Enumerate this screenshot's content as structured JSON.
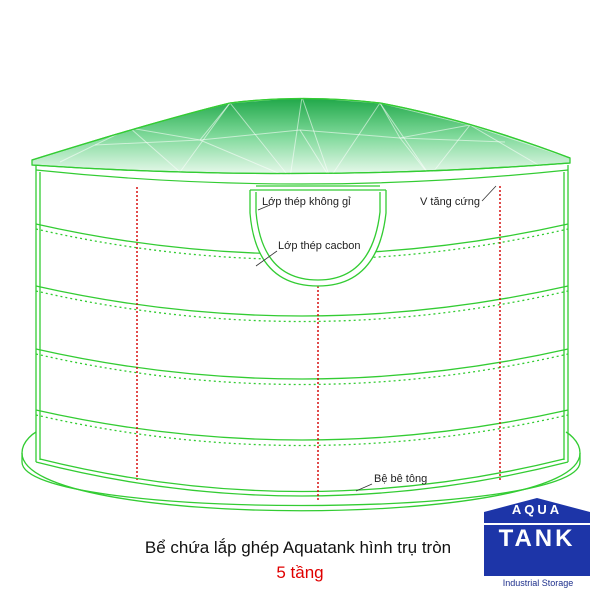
{
  "labels": {
    "stainless": "Lớp thép không gỉ",
    "carbon": "Lớp thép cacbon",
    "stiffener": "V tăng cứng",
    "base": "Bệ bê tông"
  },
  "caption": {
    "title": "Bể chứa lắp ghép Aquatank hình trụ tròn",
    "subtitle": "5 tầng"
  },
  "logo": {
    "top_word": "AQUA",
    "main_word": "TANK",
    "footer": "Industrial Storage",
    "primary_color": "#1d35a8"
  },
  "colors": {
    "outline": "#33cc33",
    "seam": "#d40000",
    "caption_accent": "#e00000"
  }
}
